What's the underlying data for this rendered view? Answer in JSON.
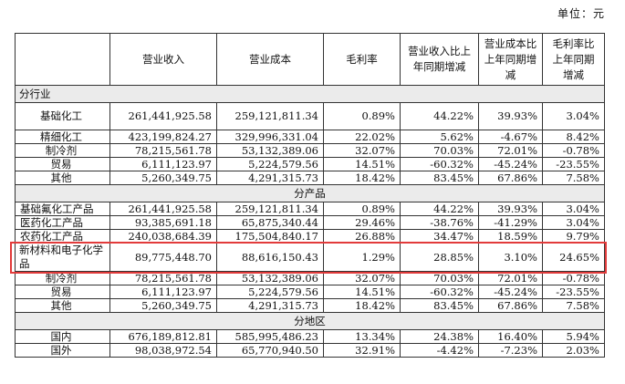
{
  "unit_label": "单位：元",
  "headers": [
    "",
    "营业收入",
    "营业成本",
    "毛利率",
    "营业收入比上年同期增减",
    "营业成本比上年同期增减",
    "毛利率比上年同期增减"
  ],
  "sections": [
    {
      "title": "分行业",
      "rows": [
        [
          "基础化工",
          "261,441,925.58",
          "259,121,811.34",
          "0.89%",
          "44.22%",
          "39.93%",
          "3.04%"
        ],
        [
          "精细化工",
          "423,199,824.27",
          "329,996,331.04",
          "22.02%",
          "5.62%",
          "-4.67%",
          "8.42%"
        ],
        [
          "制冷剂",
          "78,215,561.78",
          "53,132,389.06",
          "32.07%",
          "70.03%",
          "72.01%",
          "-0.78%"
        ],
        [
          "贸易",
          "6,111,123.97",
          "5,224,579.56",
          "14.51%",
          "-60.32%",
          "-45.24%",
          "-23.55%"
        ],
        [
          "其他",
          "5,260,349.75",
          "4,291,315.73",
          "18.42%",
          "83.45%",
          "67.86%",
          "7.58%"
        ]
      ]
    },
    {
      "title": "分产品",
      "rows": [
        [
          "基础氟化工产品",
          "261,441,925.58",
          "259,121,811.34",
          "0.89%",
          "44.22%",
          "39.93%",
          "3.04%"
        ],
        [
          "医药化工产品",
          "93,385,691.18",
          "65,875,340.44",
          "29.46%",
          "-38.76%",
          "-41.29%",
          "3.04%"
        ],
        [
          "农药化工产品",
          "240,038,684.39",
          "175,504,840.17",
          "26.88%",
          "34.47%",
          "18.59%",
          "9.79%"
        ],
        [
          "新材料和电子化学品",
          "89,775,448.70",
          "88,616,150.43",
          "1.29%",
          "28.85%",
          "3.10%",
          "24.65%"
        ],
        [
          "制冷剂",
          "78,215,561.78",
          "53,132,389.06",
          "32.07%",
          "70.03%",
          "72.01%",
          "-0.78%"
        ],
        [
          "贸易",
          "6,111,123.97",
          "5,224,579.56",
          "14.51%",
          "-60.32%",
          "-45.24%",
          "-23.55%"
        ],
        [
          "其他",
          "5,260,349.75",
          "4,291,315.73",
          "18.42%",
          "83.45%",
          "67.86%",
          "7.58%"
        ]
      ]
    },
    {
      "title": "分地区",
      "rows": [
        [
          "国内",
          "676,189,812.81",
          "585,995,486.23",
          "13.34%",
          "24.38%",
          "16.40%",
          "5.94%"
        ],
        [
          "国外",
          "98,038,972.54",
          "65,770,940.50",
          "32.91%",
          "-4.42%",
          "-7.23%",
          "2.03%"
        ]
      ]
    }
  ],
  "highlight_color": "#e23b3b"
}
